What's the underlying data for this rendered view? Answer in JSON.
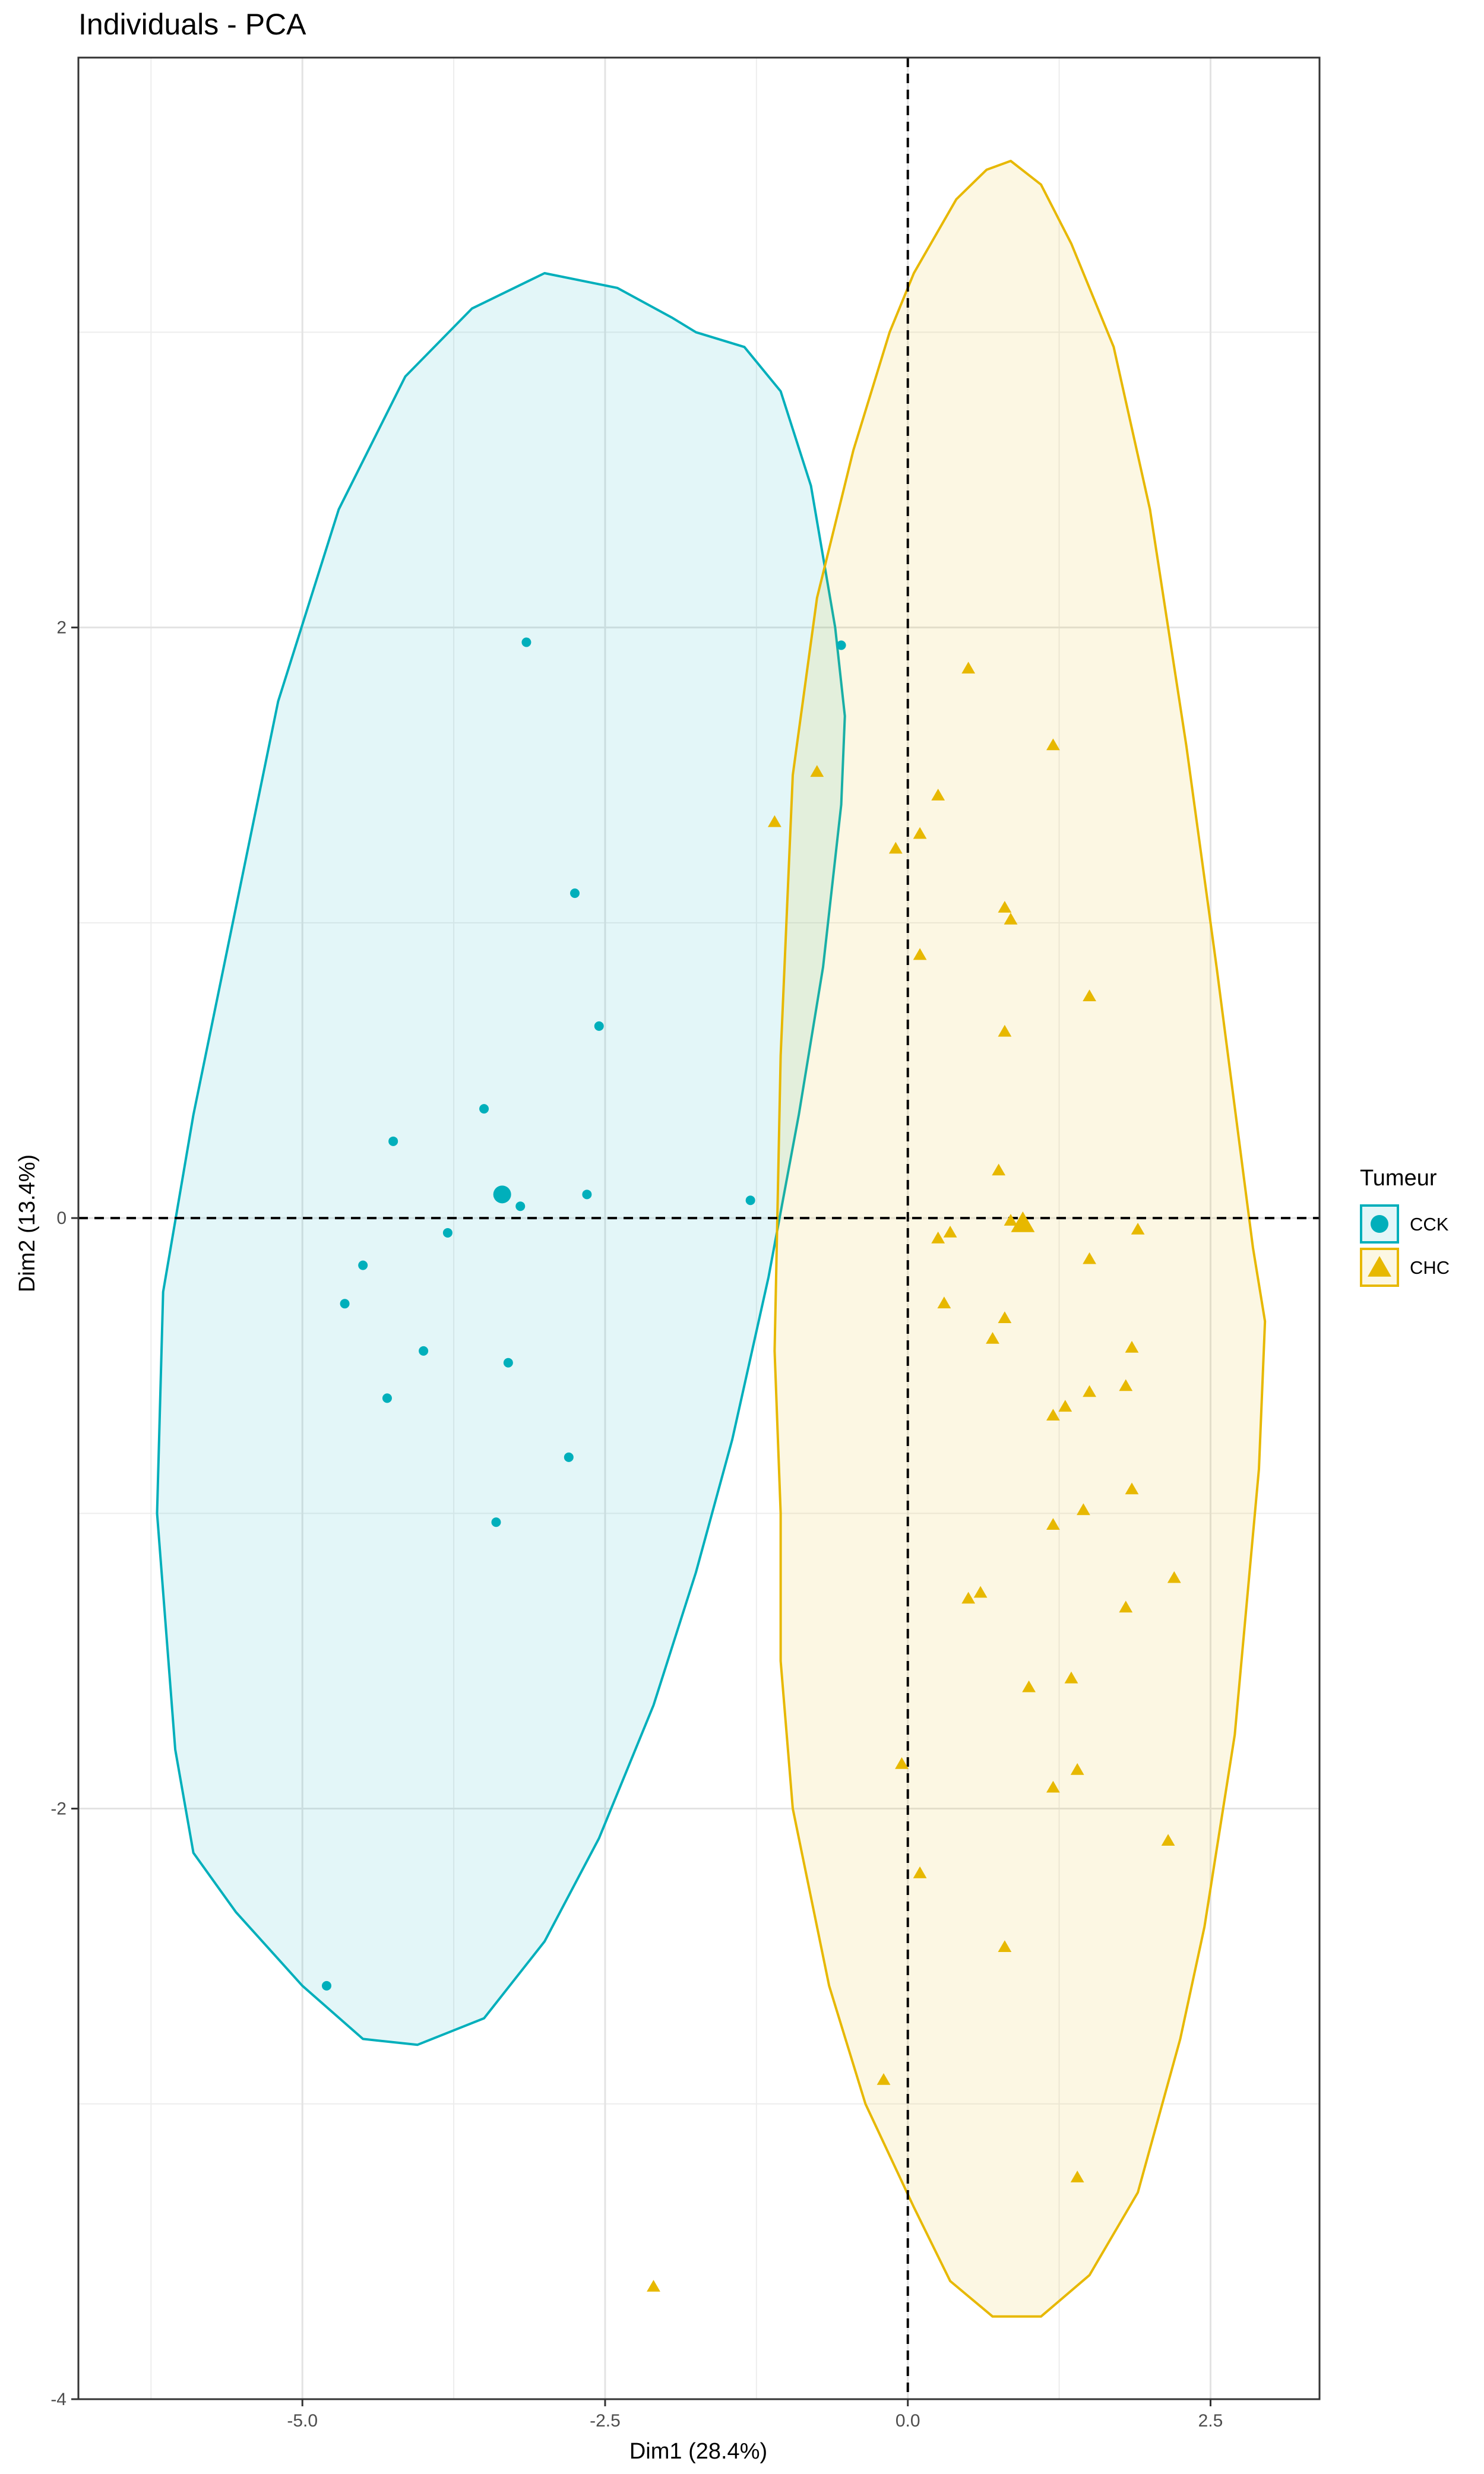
{
  "chart_data": {
    "type": "scatter",
    "title": "Individuals - PCA",
    "xlabel": "Dim1 (28.4%)",
    "ylabel": "Dim2 (13.4%)",
    "xlim": [
      -6.85,
      3.4
    ],
    "ylim": [
      -4.0,
      3.93
    ],
    "x_ticks": [
      -5.0,
      -2.5,
      0.0,
      2.5
    ],
    "x_tick_labels": [
      "-5.0",
      "-2.5",
      "0.0",
      "2.5"
    ],
    "y_ticks": [
      -4,
      -2,
      0,
      2
    ],
    "y_tick_labels": [
      "-4",
      "-2",
      "0",
      "2"
    ],
    "x_minor_ticks": [
      -6.25,
      -3.75,
      -1.25,
      1.25
    ],
    "y_minor_ticks": [
      -3,
      -1,
      1,
      3
    ],
    "grid": true,
    "reference_lines": {
      "x": 0,
      "y": 0
    },
    "legend": {
      "title": "Tumeur",
      "position": "right"
    },
    "series": [
      {
        "name": "CCK",
        "color": "#00AFBB",
        "marker": "circle",
        "mean": [
          -3.35,
          0.08
        ],
        "points": [
          [
            -3.15,
            1.95
          ],
          [
            -0.55,
            1.94
          ],
          [
            -2.75,
            1.1
          ],
          [
            -2.55,
            0.65
          ],
          [
            -3.5,
            0.37
          ],
          [
            -4.25,
            0.26
          ],
          [
            -2.65,
            0.08
          ],
          [
            -3.2,
            0.04
          ],
          [
            -1.3,
            0.06
          ],
          [
            -3.8,
            -0.05
          ],
          [
            -4.5,
            -0.16
          ],
          [
            -4.65,
            -0.29
          ],
          [
            -4.0,
            -0.45
          ],
          [
            -3.3,
            -0.49
          ],
          [
            -4.3,
            -0.61
          ],
          [
            -2.8,
            -0.81
          ],
          [
            -3.4,
            -1.03
          ],
          [
            -4.8,
            -2.6
          ]
        ],
        "ellipse": [
          [
            -1.75,
            3.0
          ],
          [
            -1.35,
            2.95
          ],
          [
            -1.05,
            2.8
          ],
          [
            -0.8,
            2.48
          ],
          [
            -0.6,
            2.0
          ],
          [
            -0.52,
            1.7
          ],
          [
            -0.55,
            1.4
          ],
          [
            -0.7,
            0.85
          ],
          [
            -0.9,
            0.35
          ],
          [
            -1.15,
            -0.2
          ],
          [
            -1.45,
            -0.75
          ],
          [
            -1.75,
            -1.2
          ],
          [
            -2.1,
            -1.65
          ],
          [
            -2.55,
            -2.1
          ],
          [
            -3.0,
            -2.45
          ],
          [
            -3.5,
            -2.71
          ],
          [
            -4.05,
            -2.8
          ],
          [
            -4.5,
            -2.78
          ],
          [
            -5.0,
            -2.6
          ],
          [
            -5.55,
            -2.35
          ],
          [
            -5.9,
            -2.15
          ],
          [
            -6.05,
            -1.8
          ],
          [
            -6.2,
            -1.0
          ],
          [
            -6.15,
            -0.25
          ],
          [
            -5.9,
            0.35
          ],
          [
            -5.6,
            0.95
          ],
          [
            -5.2,
            1.75
          ],
          [
            -4.7,
            2.4
          ],
          [
            -4.15,
            2.85
          ],
          [
            -3.6,
            3.08
          ],
          [
            -3.0,
            3.2
          ],
          [
            -2.4,
            3.15
          ],
          [
            -1.95,
            3.05
          ]
        ]
      },
      {
        "name": "CHC",
        "color": "#E7B800",
        "marker": "triangle",
        "mean": [
          0.95,
          -0.02
        ],
        "points": [
          [
            0.5,
            1.86
          ],
          [
            1.2,
            1.6
          ],
          [
            -0.75,
            1.51
          ],
          [
            0.25,
            1.43
          ],
          [
            -1.1,
            1.34
          ],
          [
            0.1,
            1.3
          ],
          [
            -0.1,
            1.25
          ],
          [
            0.8,
            1.05
          ],
          [
            0.85,
            1.01
          ],
          [
            0.1,
            0.89
          ],
          [
            1.5,
            0.75
          ],
          [
            0.8,
            0.63
          ],
          [
            0.75,
            0.16
          ],
          [
            0.85,
            -0.01
          ],
          [
            1.9,
            -0.04
          ],
          [
            0.35,
            -0.05
          ],
          [
            0.25,
            -0.07
          ],
          [
            1.5,
            -0.14
          ],
          [
            0.3,
            -0.29
          ],
          [
            0.8,
            -0.34
          ],
          [
            0.7,
            -0.41
          ],
          [
            1.85,
            -0.44
          ],
          [
            1.8,
            -0.57
          ],
          [
            1.5,
            -0.59
          ],
          [
            1.3,
            -0.64
          ],
          [
            1.2,
            -0.67
          ],
          [
            1.85,
            -0.92
          ],
          [
            1.45,
            -0.99
          ],
          [
            1.2,
            -1.04
          ],
          [
            2.2,
            -1.22
          ],
          [
            0.6,
            -1.27
          ],
          [
            0.5,
            -1.29
          ],
          [
            1.8,
            -1.32
          ],
          [
            1.35,
            -1.56
          ],
          [
            1.0,
            -1.59
          ],
          [
            -0.05,
            -1.85
          ],
          [
            1.4,
            -1.87
          ],
          [
            1.2,
            -1.93
          ],
          [
            2.15,
            -2.11
          ],
          [
            0.1,
            -2.22
          ],
          [
            0.8,
            -2.47
          ],
          [
            -0.2,
            -2.92
          ],
          [
            1.4,
            -3.25
          ],
          [
            -2.1,
            -3.62
          ]
        ],
        "ellipse": [
          [
            0.85,
            3.58
          ],
          [
            1.1,
            3.5
          ],
          [
            1.35,
            3.3
          ],
          [
            1.7,
            2.95
          ],
          [
            2.0,
            2.4
          ],
          [
            2.3,
            1.6
          ],
          [
            2.55,
            0.85
          ],
          [
            2.85,
            -0.1
          ],
          [
            2.95,
            -0.35
          ],
          [
            2.9,
            -0.85
          ],
          [
            2.7,
            -1.75
          ],
          [
            2.45,
            -2.4
          ],
          [
            2.25,
            -2.78
          ],
          [
            1.9,
            -3.3
          ],
          [
            1.5,
            -3.58
          ],
          [
            1.1,
            -3.72
          ],
          [
            0.7,
            -3.72
          ],
          [
            0.35,
            -3.6
          ],
          [
            0.05,
            -3.35
          ],
          [
            -0.35,
            -3.0
          ],
          [
            -0.65,
            -2.6
          ],
          [
            -0.95,
            -2.0
          ],
          [
            -1.05,
            -1.5
          ],
          [
            -1.05,
            -1.0
          ],
          [
            -1.1,
            -0.45
          ],
          [
            -1.05,
            0.55
          ],
          [
            -0.95,
            1.5
          ],
          [
            -0.75,
            2.1
          ],
          [
            -0.45,
            2.6
          ],
          [
            -0.15,
            3.0
          ],
          [
            0.05,
            3.2
          ],
          [
            0.4,
            3.45
          ],
          [
            0.65,
            3.55
          ]
        ]
      }
    ]
  }
}
